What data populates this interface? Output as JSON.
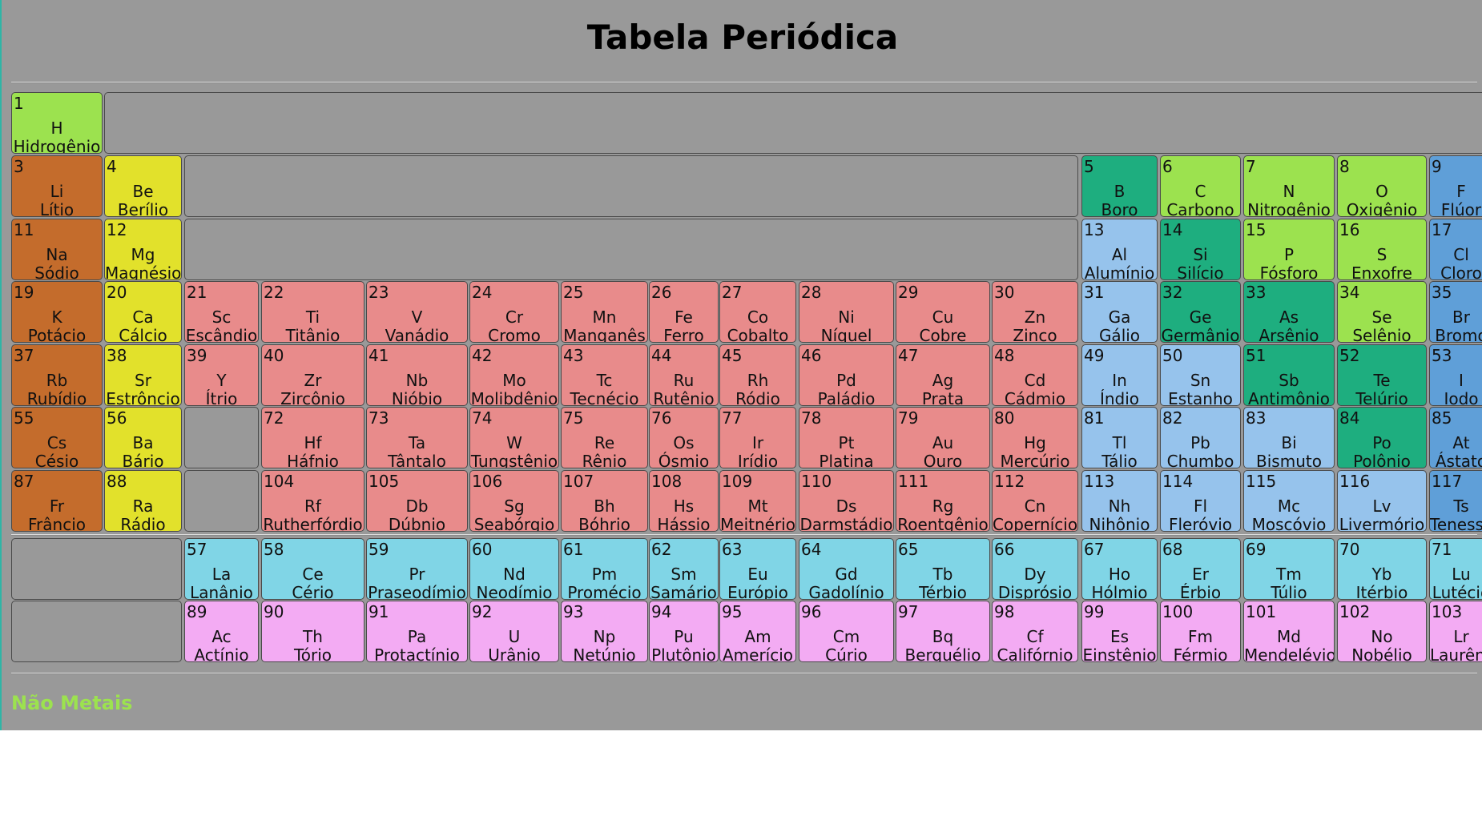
{
  "title": "Tabela Periódica",
  "legend": {
    "label": "Não Metais",
    "color": "#9ce24f"
  },
  "colors": {
    "nonmetal": "#9ce24f",
    "metalloid": "#1eae7f",
    "halogen": "#5f9fd8",
    "alkali": "#c46c2c",
    "alkaline": "#e2e12b",
    "transition": "#e88b8b",
    "post": "#96c3ec",
    "lanthanide": "#80d5e6",
    "actinide": "#f3abf3"
  },
  "elements": [
    {
      "n": "1",
      "s": "H",
      "name": "Hidrogênio",
      "c": "nonmetal",
      "row": 1,
      "col": 1
    },
    {
      "n": "3",
      "s": "Li",
      "name": "Lítio",
      "c": "alkali",
      "row": 2,
      "col": 1
    },
    {
      "n": "4",
      "s": "Be",
      "name": "Berílio",
      "c": "alkaline",
      "row": 2,
      "col": 2
    },
    {
      "n": "5",
      "s": "B",
      "name": "Boro",
      "c": "metalloid",
      "row": 2,
      "col": 13
    },
    {
      "n": "6",
      "s": "C",
      "name": "Carbono",
      "c": "nonmetal",
      "row": 2,
      "col": 14
    },
    {
      "n": "7",
      "s": "N",
      "name": "Nitrogênio",
      "c": "nonmetal",
      "row": 2,
      "col": 15
    },
    {
      "n": "8",
      "s": "O",
      "name": "Oxigênio",
      "c": "nonmetal",
      "row": 2,
      "col": 16
    },
    {
      "n": "9",
      "s": "F",
      "name": "Flúor",
      "c": "halogen",
      "row": 2,
      "col": 17
    },
    {
      "n": "11",
      "s": "Na",
      "name": "Sódio",
      "c": "alkali",
      "row": 3,
      "col": 1
    },
    {
      "n": "12",
      "s": "Mg",
      "name": "Magnésio",
      "c": "alkaline",
      "row": 3,
      "col": 2
    },
    {
      "n": "13",
      "s": "Al",
      "name": "Alumínio",
      "c": "post",
      "row": 3,
      "col": 13
    },
    {
      "n": "14",
      "s": "Si",
      "name": "Silício",
      "c": "metalloid",
      "row": 3,
      "col": 14
    },
    {
      "n": "15",
      "s": "P",
      "name": "Fósforo",
      "c": "nonmetal",
      "row": 3,
      "col": 15
    },
    {
      "n": "16",
      "s": "S",
      "name": "Enxofre",
      "c": "nonmetal",
      "row": 3,
      "col": 16
    },
    {
      "n": "17",
      "s": "Cl",
      "name": "Cloro",
      "c": "halogen",
      "row": 3,
      "col": 17
    },
    {
      "n": "19",
      "s": "K",
      "name": "Potácio",
      "c": "alkali",
      "row": 4,
      "col": 1
    },
    {
      "n": "20",
      "s": "Ca",
      "name": "Cálcio",
      "c": "alkaline",
      "row": 4,
      "col": 2
    },
    {
      "n": "21",
      "s": "Sc",
      "name": "Escândio",
      "c": "transition",
      "row": 4,
      "col": 3
    },
    {
      "n": "22",
      "s": "Ti",
      "name": "Titânio",
      "c": "transition",
      "row": 4,
      "col": 4
    },
    {
      "n": "23",
      "s": "V",
      "name": "Vanádio",
      "c": "transition",
      "row": 4,
      "col": 5
    },
    {
      "n": "24",
      "s": "Cr",
      "name": "Cromo",
      "c": "transition",
      "row": 4,
      "col": 6
    },
    {
      "n": "25",
      "s": "Mn",
      "name": "Manganês",
      "c": "transition",
      "row": 4,
      "col": 7
    },
    {
      "n": "26",
      "s": "Fe",
      "name": "Ferro",
      "c": "transition",
      "row": 4,
      "col": 8
    },
    {
      "n": "27",
      "s": "Co",
      "name": "Cobalto",
      "c": "transition",
      "row": 4,
      "col": 9
    },
    {
      "n": "28",
      "s": "Ni",
      "name": "Níquel",
      "c": "transition",
      "row": 4,
      "col": 10
    },
    {
      "n": "29",
      "s": "Cu",
      "name": "Cobre",
      "c": "transition",
      "row": 4,
      "col": 11
    },
    {
      "n": "30",
      "s": "Zn",
      "name": "Zinco",
      "c": "transition",
      "row": 4,
      "col": 12
    },
    {
      "n": "31",
      "s": "Ga",
      "name": "Gálio",
      "c": "post",
      "row": 4,
      "col": 13
    },
    {
      "n": "32",
      "s": "Ge",
      "name": "Germânio",
      "c": "metalloid",
      "row": 4,
      "col": 14
    },
    {
      "n": "33",
      "s": "As",
      "name": "Arsênio",
      "c": "metalloid",
      "row": 4,
      "col": 15
    },
    {
      "n": "34",
      "s": "Se",
      "name": "Selênio",
      "c": "nonmetal",
      "row": 4,
      "col": 16
    },
    {
      "n": "35",
      "s": "Br",
      "name": "Bromo",
      "c": "halogen",
      "row": 4,
      "col": 17
    },
    {
      "n": "37",
      "s": "Rb",
      "name": "Rubídio",
      "c": "alkali",
      "row": 5,
      "col": 1
    },
    {
      "n": "38",
      "s": "Sr",
      "name": "Estrôncio",
      "c": "alkaline",
      "row": 5,
      "col": 2
    },
    {
      "n": "39",
      "s": "Y",
      "name": "Ítrio",
      "c": "transition",
      "row": 5,
      "col": 3
    },
    {
      "n": "40",
      "s": "Zr",
      "name": "Zircônio",
      "c": "transition",
      "row": 5,
      "col": 4
    },
    {
      "n": "41",
      "s": "Nb",
      "name": "Nióbio",
      "c": "transition",
      "row": 5,
      "col": 5
    },
    {
      "n": "42",
      "s": "Mo",
      "name": "Molibdênio",
      "c": "transition",
      "row": 5,
      "col": 6
    },
    {
      "n": "43",
      "s": "Tc",
      "name": "Tecnécio",
      "c": "transition",
      "row": 5,
      "col": 7
    },
    {
      "n": "44",
      "s": "Ru",
      "name": "Rutênio",
      "c": "transition",
      "row": 5,
      "col": 8
    },
    {
      "n": "45",
      "s": "Rh",
      "name": "Ródio",
      "c": "transition",
      "row": 5,
      "col": 9
    },
    {
      "n": "46",
      "s": "Pd",
      "name": "Paládio",
      "c": "transition",
      "row": 5,
      "col": 10
    },
    {
      "n": "47",
      "s": "Ag",
      "name": "Prata",
      "c": "transition",
      "row": 5,
      "col": 11
    },
    {
      "n": "48",
      "s": "Cd",
      "name": "Cádmio",
      "c": "transition",
      "row": 5,
      "col": 12
    },
    {
      "n": "49",
      "s": "In",
      "name": "Índio",
      "c": "post",
      "row": 5,
      "col": 13
    },
    {
      "n": "50",
      "s": "Sn",
      "name": "Estanho",
      "c": "post",
      "row": 5,
      "col": 14
    },
    {
      "n": "51",
      "s": "Sb",
      "name": "Antimônio",
      "c": "metalloid",
      "row": 5,
      "col": 15
    },
    {
      "n": "52",
      "s": "Te",
      "name": "Telúrio",
      "c": "metalloid",
      "row": 5,
      "col": 16
    },
    {
      "n": "53",
      "s": "I",
      "name": "Iodo",
      "c": "halogen",
      "row": 5,
      "col": 17
    },
    {
      "n": "55",
      "s": "Cs",
      "name": "Césio",
      "c": "alkali",
      "row": 6,
      "col": 1
    },
    {
      "n": "56",
      "s": "Ba",
      "name": "Bário",
      "c": "alkaline",
      "row": 6,
      "col": 2
    },
    {
      "n": "72",
      "s": "Hf",
      "name": "Háfnio",
      "c": "transition",
      "row": 6,
      "col": 4
    },
    {
      "n": "73",
      "s": "Ta",
      "name": "Tântalo",
      "c": "transition",
      "row": 6,
      "col": 5
    },
    {
      "n": "74",
      "s": "W",
      "name": "Tungstênio",
      "c": "transition",
      "row": 6,
      "col": 6
    },
    {
      "n": "75",
      "s": "Re",
      "name": "Rênio",
      "c": "transition",
      "row": 6,
      "col": 7
    },
    {
      "n": "76",
      "s": "Os",
      "name": "Ósmio",
      "c": "transition",
      "row": 6,
      "col": 8
    },
    {
      "n": "77",
      "s": "Ir",
      "name": "Irídio",
      "c": "transition",
      "row": 6,
      "col": 9
    },
    {
      "n": "78",
      "s": "Pt",
      "name": "Platina",
      "c": "transition",
      "row": 6,
      "col": 10
    },
    {
      "n": "79",
      "s": "Au",
      "name": "Ouro",
      "c": "transition",
      "row": 6,
      "col": 11
    },
    {
      "n": "80",
      "s": "Hg",
      "name": "Mercúrio",
      "c": "transition",
      "row": 6,
      "col": 12
    },
    {
      "n": "81",
      "s": "Tl",
      "name": "Tálio",
      "c": "post",
      "row": 6,
      "col": 13
    },
    {
      "n": "82",
      "s": "Pb",
      "name": "Chumbo",
      "c": "post",
      "row": 6,
      "col": 14
    },
    {
      "n": "83",
      "s": "Bi",
      "name": "Bismuto",
      "c": "post",
      "row": 6,
      "col": 15
    },
    {
      "n": "84",
      "s": "Po",
      "name": "Polônio",
      "c": "metalloid",
      "row": 6,
      "col": 16
    },
    {
      "n": "85",
      "s": "At",
      "name": "Ástato",
      "c": "halogen",
      "row": 6,
      "col": 17
    },
    {
      "n": "87",
      "s": "Fr",
      "name": "Frâncio",
      "c": "alkali",
      "row": 7,
      "col": 1
    },
    {
      "n": "88",
      "s": "Ra",
      "name": "Rádio",
      "c": "alkaline",
      "row": 7,
      "col": 2
    },
    {
      "n": "104",
      "s": "Rf",
      "name": "Rutherfórdio",
      "c": "transition",
      "row": 7,
      "col": 4
    },
    {
      "n": "105",
      "s": "Db",
      "name": "Dúbnio",
      "c": "transition",
      "row": 7,
      "col": 5
    },
    {
      "n": "106",
      "s": "Sg",
      "name": "Seabórgio",
      "c": "transition",
      "row": 7,
      "col": 6
    },
    {
      "n": "107",
      "s": "Bh",
      "name": "Bóhrio",
      "c": "transition",
      "row": 7,
      "col": 7
    },
    {
      "n": "108",
      "s": "Hs",
      "name": "Hássio",
      "c": "transition",
      "row": 7,
      "col": 8
    },
    {
      "n": "109",
      "s": "Mt",
      "name": "Meitnério",
      "c": "transition",
      "row": 7,
      "col": 9
    },
    {
      "n": "110",
      "s": "Ds",
      "name": "Darmstádio",
      "c": "transition",
      "row": 7,
      "col": 10
    },
    {
      "n": "111",
      "s": "Rg",
      "name": "Roentgênio",
      "c": "transition",
      "row": 7,
      "col": 11
    },
    {
      "n": "112",
      "s": "Cn",
      "name": "Copernício",
      "c": "transition",
      "row": 7,
      "col": 12
    },
    {
      "n": "113",
      "s": "Nh",
      "name": "Nihônio",
      "c": "post",
      "row": 7,
      "col": 13
    },
    {
      "n": "114",
      "s": "Fl",
      "name": "Fleróvio",
      "c": "post",
      "row": 7,
      "col": 14
    },
    {
      "n": "115",
      "s": "Mc",
      "name": "Moscóvio",
      "c": "post",
      "row": 7,
      "col": 15
    },
    {
      "n": "116",
      "s": "Lv",
      "name": "Livermório",
      "c": "post",
      "row": 7,
      "col": 16
    },
    {
      "n": "117",
      "s": "Ts",
      "name": "Tenessino",
      "c": "halogen",
      "row": 7,
      "col": 17
    },
    {
      "n": "57",
      "s": "La",
      "name": "Lanânio",
      "c": "lanthanide",
      "row": 8,
      "col": 3
    },
    {
      "n": "58",
      "s": "Ce",
      "name": "Cério",
      "c": "lanthanide",
      "row": 8,
      "col": 4
    },
    {
      "n": "59",
      "s": "Pr",
      "name": "Praseodímio",
      "c": "lanthanide",
      "row": 8,
      "col": 5
    },
    {
      "n": "60",
      "s": "Nd",
      "name": "Neodímio",
      "c": "lanthanide",
      "row": 8,
      "col": 6
    },
    {
      "n": "61",
      "s": "Pm",
      "name": "Promécio",
      "c": "lanthanide",
      "row": 8,
      "col": 7
    },
    {
      "n": "62",
      "s": "Sm",
      "name": "Samário",
      "c": "lanthanide",
      "row": 8,
      "col": 8
    },
    {
      "n": "63",
      "s": "Eu",
      "name": "Európio",
      "c": "lanthanide",
      "row": 8,
      "col": 9
    },
    {
      "n": "64",
      "s": "Gd",
      "name": "Gadolínio",
      "c": "lanthanide",
      "row": 8,
      "col": 10
    },
    {
      "n": "65",
      "s": "Tb",
      "name": "Térbio",
      "c": "lanthanide",
      "row": 8,
      "col": 11
    },
    {
      "n": "66",
      "s": "Dy",
      "name": "Disprósio",
      "c": "lanthanide",
      "row": 8,
      "col": 12
    },
    {
      "n": "67",
      "s": "Ho",
      "name": "Hólmio",
      "c": "lanthanide",
      "row": 8,
      "col": 13
    },
    {
      "n": "68",
      "s": "Er",
      "name": "Érbio",
      "c": "lanthanide",
      "row": 8,
      "col": 14
    },
    {
      "n": "69",
      "s": "Tm",
      "name": "Túlio",
      "c": "lanthanide",
      "row": 8,
      "col": 15
    },
    {
      "n": "70",
      "s": "Yb",
      "name": "Itérbio",
      "c": "lanthanide",
      "row": 8,
      "col": 16
    },
    {
      "n": "71",
      "s": "Lu",
      "name": "Lutécio",
      "c": "lanthanide",
      "row": 8,
      "col": 17
    },
    {
      "n": "89",
      "s": "Ac",
      "name": "Actínio",
      "c": "actinide",
      "row": 9,
      "col": 3
    },
    {
      "n": "90",
      "s": "Th",
      "name": "Tório",
      "c": "actinide",
      "row": 9,
      "col": 4
    },
    {
      "n": "91",
      "s": "Pa",
      "name": "Protactínio",
      "c": "actinide",
      "row": 9,
      "col": 5
    },
    {
      "n": "92",
      "s": "U",
      "name": "Urânio",
      "c": "actinide",
      "row": 9,
      "col": 6
    },
    {
      "n": "93",
      "s": "Np",
      "name": "Netúnio",
      "c": "actinide",
      "row": 9,
      "col": 7
    },
    {
      "n": "94",
      "s": "Pu",
      "name": "Plutônio",
      "c": "actinide",
      "row": 9,
      "col": 8
    },
    {
      "n": "95",
      "s": "Am",
      "name": "Amerício",
      "c": "actinide",
      "row": 9,
      "col": 9
    },
    {
      "n": "96",
      "s": "Cm",
      "name": "Cúrio",
      "c": "actinide",
      "row": 9,
      "col": 10
    },
    {
      "n": "97",
      "s": "Bq",
      "name": "Berquélio",
      "c": "actinide",
      "row": 9,
      "col": 11
    },
    {
      "n": "98",
      "s": "Cf",
      "name": "Califórnio",
      "c": "actinide",
      "row": 9,
      "col": 12
    },
    {
      "n": "99",
      "s": "Es",
      "name": "Einstênio",
      "c": "actinide",
      "row": 9,
      "col": 13
    },
    {
      "n": "100",
      "s": "Fm",
      "name": "Férmio",
      "c": "actinide",
      "row": 9,
      "col": 14
    },
    {
      "n": "101",
      "s": "Md",
      "name": "Mendelévio",
      "c": "actinide",
      "row": 9,
      "col": 15
    },
    {
      "n": "102",
      "s": "No",
      "name": "Nobélio",
      "c": "actinide",
      "row": 9,
      "col": 16
    },
    {
      "n": "103",
      "s": "Lr",
      "name": "Laurêncio",
      "c": "actinide",
      "row": 9,
      "col": 17
    }
  ]
}
